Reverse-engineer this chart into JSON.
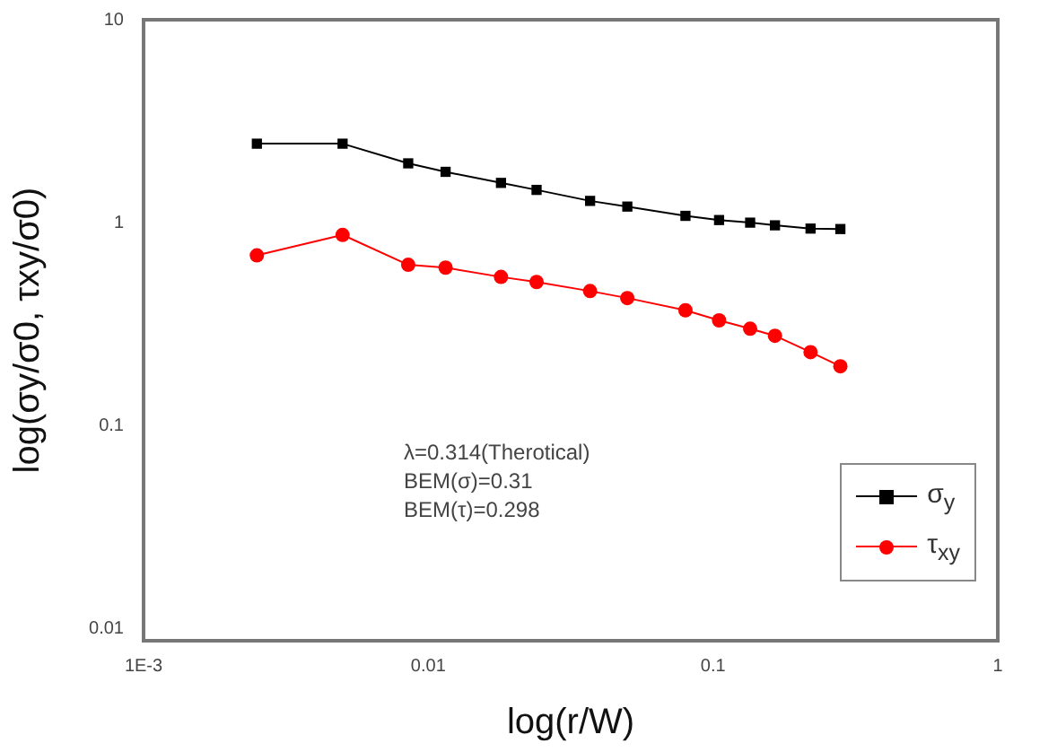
{
  "chart_data": {
    "type": "line",
    "xlabel": "log(r/W)",
    "ylabel": "log(σy/σ0, τxy/σ0)",
    "log": "xy",
    "xlim": [
      0.001,
      1
    ],
    "xticks": [
      {
        "value": 0.001,
        "label": "1E-3"
      },
      0.01,
      0.1,
      1
    ],
    "ylim": [
      0.0087,
      10
    ],
    "yticks": [
      0.01,
      0.1,
      1,
      10
    ],
    "grid": false,
    "legend": "bottom right",
    "line_style": "solid",
    "x": [
      0.0025,
      0.005,
      0.0085,
      0.0115,
      0.018,
      0.024,
      0.037,
      0.05,
      0.08,
      0.105,
      0.135,
      0.165,
      0.22,
      0.28
    ],
    "series": [
      {
        "name": "σ$_{y}$",
        "color": "#000000",
        "marker": "square",
        "values": [
          2.45,
          2.45,
          1.96,
          1.78,
          1.57,
          1.45,
          1.28,
          1.2,
          1.08,
          1.03,
          1.0,
          0.97,
          0.935,
          0.93
        ]
      },
      {
        "name": "τ$_{xy}$",
        "color": "#ff0000",
        "marker": "circle",
        "values": [
          0.69,
          0.87,
          0.62,
          0.6,
          0.54,
          0.51,
          0.46,
          0.425,
          0.37,
          0.33,
          0.3,
          0.277,
          0.23,
          0.196
        ]
      }
    ],
    "annotations": [
      "λ=0.314(Therotical)",
      "BEM(σ)=0.31",
      "BEM(τ)=0.298"
    ]
  }
}
